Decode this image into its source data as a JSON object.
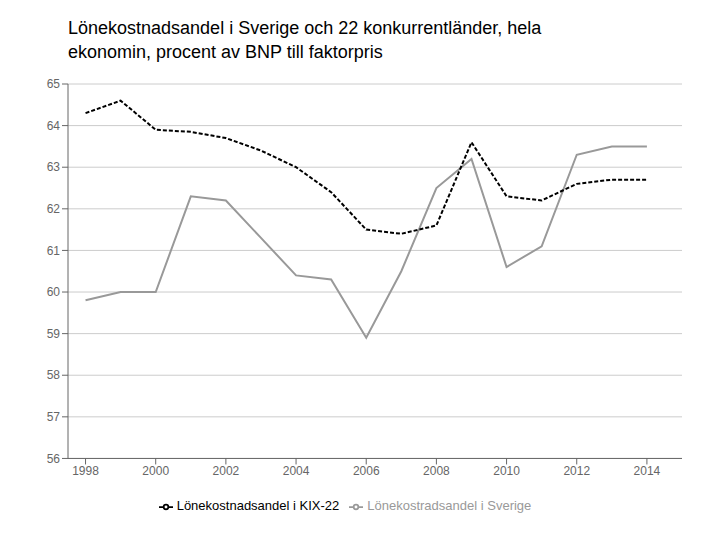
{
  "chart_data": {
    "type": "line",
    "title": "Lönekostnadsandel i Sverige och 22 konkurrentländer, hela\nekonomin, procent av BNP till faktorpris",
    "x": [
      1998,
      1999,
      2000,
      2001,
      2002,
      2003,
      2004,
      2005,
      2006,
      2007,
      2008,
      2009,
      2010,
      2011,
      2012,
      2013,
      2014
    ],
    "series": [
      {
        "name": "Lönekostradsandel i Sverige",
        "color": "#999999",
        "line_style": "solid",
        "values": [
          59.8,
          60.0,
          60.0,
          62.3,
          62.2,
          61.3,
          60.4,
          60.3,
          58.9,
          60.5,
          62.5,
          63.2,
          60.6,
          61.1,
          63.3,
          63.5,
          63.5
        ]
      },
      {
        "name": "Lönekostnadsandel i KIX-22",
        "color": "#000000",
        "line_style": "dashed",
        "values": [
          64.3,
          64.6,
          63.9,
          63.85,
          63.7,
          63.4,
          63.0,
          62.4,
          61.5,
          61.4,
          61.6,
          63.6,
          62.3,
          62.2,
          62.6,
          62.7,
          62.7
        ]
      }
    ],
    "xlim": [
      1997.5,
      2015.0
    ],
    "xticks": [
      1998,
      2000,
      2002,
      2004,
      2006,
      2008,
      2010,
      2012,
      2014
    ],
    "ylim": [
      56,
      65
    ],
    "yticks": [
      56,
      57,
      58,
      59,
      60,
      61,
      62,
      63,
      64,
      65
    ],
    "grid": "y",
    "legend": "bottom"
  }
}
